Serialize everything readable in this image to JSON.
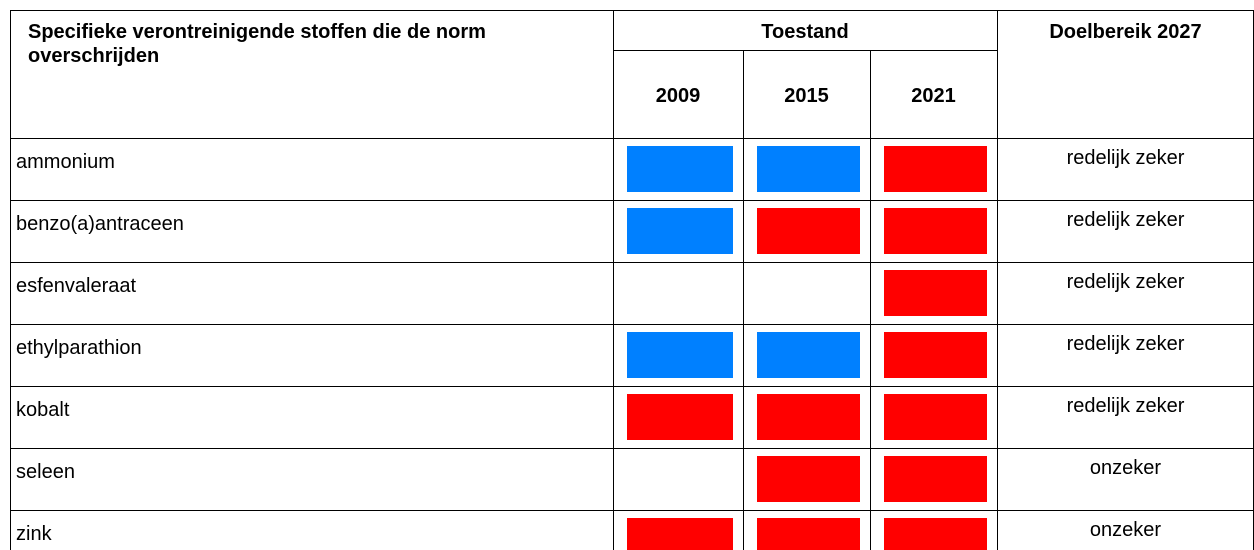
{
  "header": {
    "substance": "Specifieke verontreinigende stoffen die de norm overschrijden",
    "status": "Toestand",
    "years": [
      "2009",
      "2015",
      "2021"
    ],
    "target": "Doelbereik 2027"
  },
  "rows": [
    {
      "name": "ammonium",
      "status": [
        "#0080ff",
        "#0080ff",
        "#ff0000"
      ],
      "target": "redelijk zeker"
    },
    {
      "name": "benzo(a)antraceen",
      "status": [
        "#0080ff",
        "#ff0000",
        "#ff0000"
      ],
      "target": "redelijk zeker"
    },
    {
      "name": "esfenvaleraat",
      "status": [
        null,
        null,
        "#ff0000"
      ],
      "target": "redelijk zeker"
    },
    {
      "name": "ethylparathion",
      "status": [
        "#0080ff",
        "#0080ff",
        "#ff0000"
      ],
      "target": "redelijk zeker"
    },
    {
      "name": "kobalt",
      "status": [
        "#ff0000",
        "#ff0000",
        "#ff0000"
      ],
      "target": "redelijk zeker"
    },
    {
      "name": "seleen",
      "status": [
        null,
        "#ff0000",
        "#ff0000"
      ],
      "target": "onzeker"
    },
    {
      "name": "zink",
      "status": [
        "#ff0000",
        "#ff0000",
        "#ff0000"
      ],
      "target": "onzeker"
    }
  ]
}
